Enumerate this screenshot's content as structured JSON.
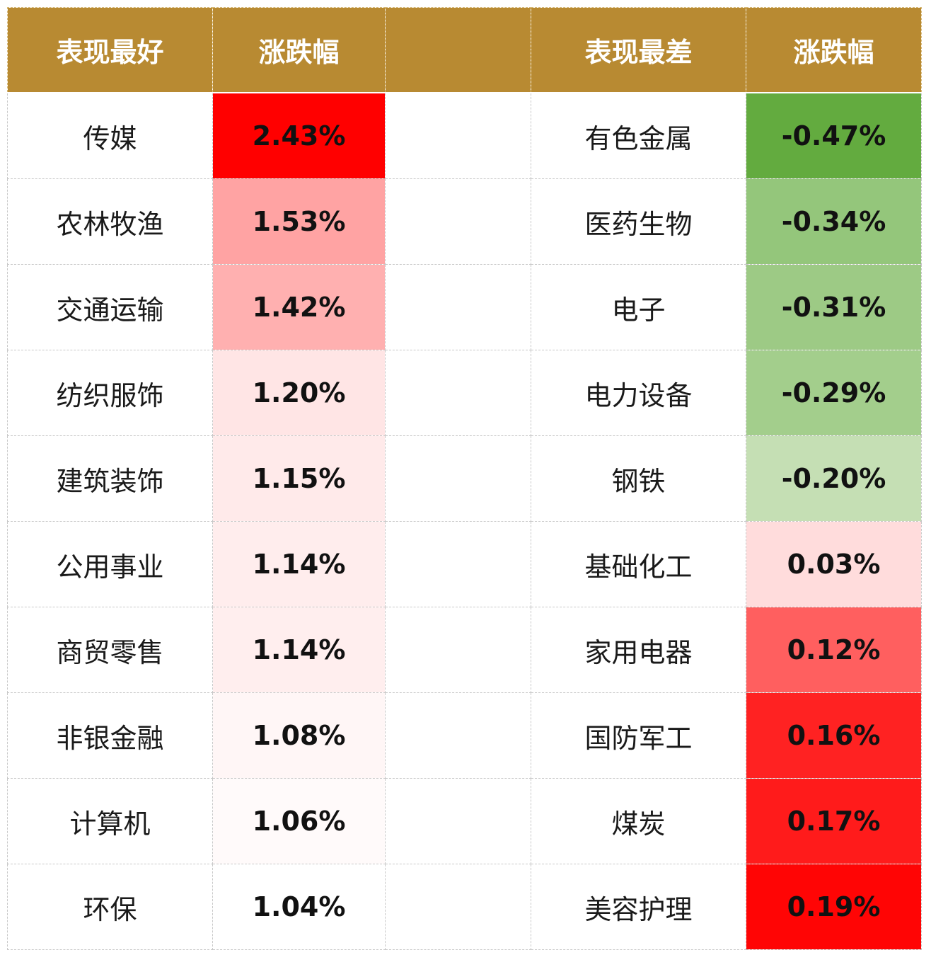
{
  "table": {
    "headers": {
      "best": "表现最好",
      "best_change": "涨跌幅",
      "spacer": "",
      "worst": "表现最差",
      "worst_change": "涨跌幅"
    },
    "best_rows": [
      {
        "name": "传媒",
        "change": "2.43%",
        "bg": "#ff0000"
      },
      {
        "name": "农林牧渔",
        "change": "1.53%",
        "bg": "#ffa3a3"
      },
      {
        "name": "交通运输",
        "change": "1.42%",
        "bg": "#ffb0b0"
      },
      {
        "name": "纺织服饰",
        "change": "1.20%",
        "bg": "#ffe5e5"
      },
      {
        "name": "建筑装饰",
        "change": "1.15%",
        "bg": "#ffeaea"
      },
      {
        "name": "公用事业",
        "change": "1.14%",
        "bg": "#ffeded"
      },
      {
        "name": "商贸零售",
        "change": "1.14%",
        "bg": "#ffeeee"
      },
      {
        "name": "非银金融",
        "change": "1.08%",
        "bg": "#fff6f6"
      },
      {
        "name": "计算机",
        "change": "1.06%",
        "bg": "#fffafa"
      },
      {
        "name": "环保",
        "change": "1.04%",
        "bg": "#ffffff"
      }
    ],
    "worst_rows": [
      {
        "name": "有色金属",
        "change": "-0.47%",
        "bg": "#63ab3f"
      },
      {
        "name": "医药生物",
        "change": "-0.34%",
        "bg": "#94c67b"
      },
      {
        "name": "电子",
        "change": "-0.31%",
        "bg": "#9dca85"
      },
      {
        "name": "电力设备",
        "change": "-0.29%",
        "bg": "#a3ce8c"
      },
      {
        "name": "钢铁",
        "change": "-0.20%",
        "bg": "#c5dfb4"
      },
      {
        "name": "基础化工",
        "change": "0.03%",
        "bg": "#ffdcdc"
      },
      {
        "name": "家用电器",
        "change": "0.12%",
        "bg": "#ff5f5f"
      },
      {
        "name": "国防军工",
        "change": "0.16%",
        "bg": "#ff2222"
      },
      {
        "name": "煤炭",
        "change": "0.17%",
        "bg": "#ff1b1b"
      },
      {
        "name": "美容护理",
        "change": "0.19%",
        "bg": "#ff0505"
      }
    ]
  }
}
